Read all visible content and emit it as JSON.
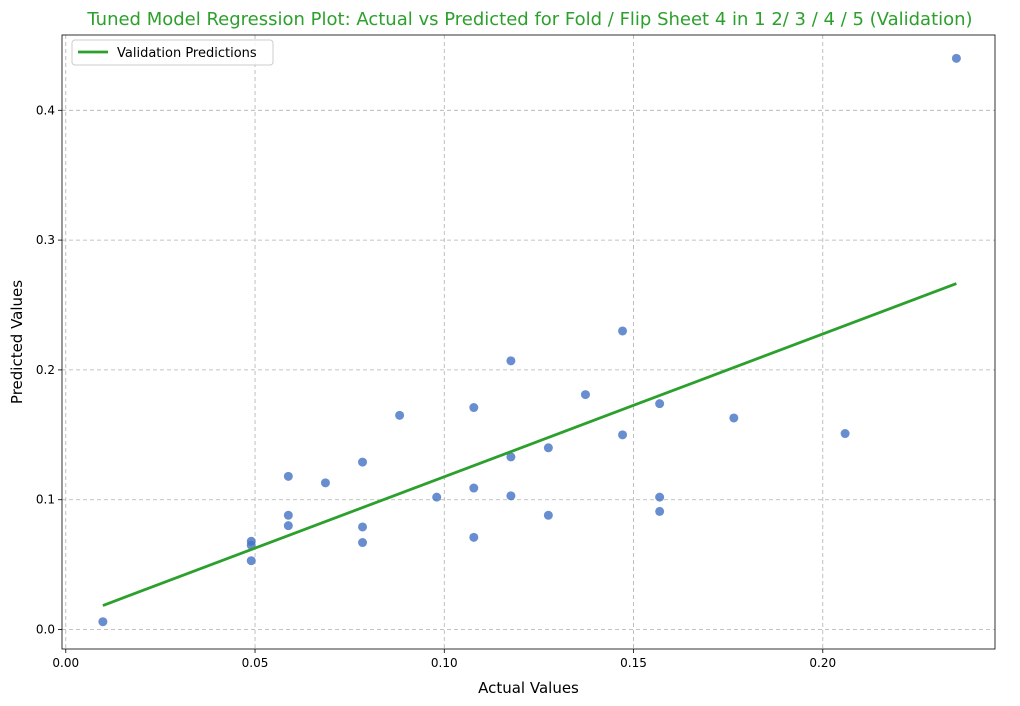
{
  "chart_data": {
    "type": "scatter",
    "title": "Tuned Model Regression Plot: Actual vs Predicted for Fold / Flip Sheet 4 in 1 2/ 3 / 4 / 5 (Validation)",
    "xlabel": "Actual Values",
    "ylabel": "Predicted Values",
    "xlim": [
      -0.001,
      0.2455
    ],
    "ylim": [
      -0.015,
      0.458
    ],
    "xticks": [
      0.0,
      0.05,
      0.1,
      0.15,
      0.2
    ],
    "xtick_labels": [
      "0.00",
      "0.05",
      "0.10",
      "0.15",
      "0.20"
    ],
    "yticks": [
      0.0,
      0.1,
      0.2,
      0.3,
      0.4
    ],
    "ytick_labels": [
      "0.0",
      "0.1",
      "0.2",
      "0.3",
      "0.4"
    ],
    "grid": true,
    "legend_position": "upper-left",
    "colors": {
      "points": "#4472c4",
      "line": "#2ca02c",
      "title": "#2ca02c"
    },
    "points": [
      {
        "x": 0.0098,
        "y": 0.006
      },
      {
        "x": 0.049,
        "y": 0.068
      },
      {
        "x": 0.049,
        "y": 0.065
      },
      {
        "x": 0.049,
        "y": 0.053
      },
      {
        "x": 0.0588,
        "y": 0.118
      },
      {
        "x": 0.0588,
        "y": 0.088
      },
      {
        "x": 0.0588,
        "y": 0.08
      },
      {
        "x": 0.0686,
        "y": 0.113
      },
      {
        "x": 0.0784,
        "y": 0.129
      },
      {
        "x": 0.0784,
        "y": 0.079
      },
      {
        "x": 0.0784,
        "y": 0.067
      },
      {
        "x": 0.0882,
        "y": 0.165
      },
      {
        "x": 0.098,
        "y": 0.102
      },
      {
        "x": 0.1078,
        "y": 0.171
      },
      {
        "x": 0.1078,
        "y": 0.109
      },
      {
        "x": 0.1078,
        "y": 0.071
      },
      {
        "x": 0.1176,
        "y": 0.207
      },
      {
        "x": 0.1176,
        "y": 0.133
      },
      {
        "x": 0.1176,
        "y": 0.103
      },
      {
        "x": 0.1275,
        "y": 0.14
      },
      {
        "x": 0.1275,
        "y": 0.088
      },
      {
        "x": 0.1373,
        "y": 0.181
      },
      {
        "x": 0.1471,
        "y": 0.23
      },
      {
        "x": 0.1471,
        "y": 0.15
      },
      {
        "x": 0.1569,
        "y": 0.174
      },
      {
        "x": 0.1569,
        "y": 0.102
      },
      {
        "x": 0.1569,
        "y": 0.091
      },
      {
        "x": 0.1765,
        "y": 0.163
      },
      {
        "x": 0.2059,
        "y": 0.151
      },
      {
        "x": 0.2353,
        "y": 0.44
      }
    ],
    "regression_line": {
      "name": "Validation Predictions",
      "x": [
        0.0098,
        0.2353
      ],
      "y": [
        0.0185,
        0.2665
      ]
    }
  }
}
